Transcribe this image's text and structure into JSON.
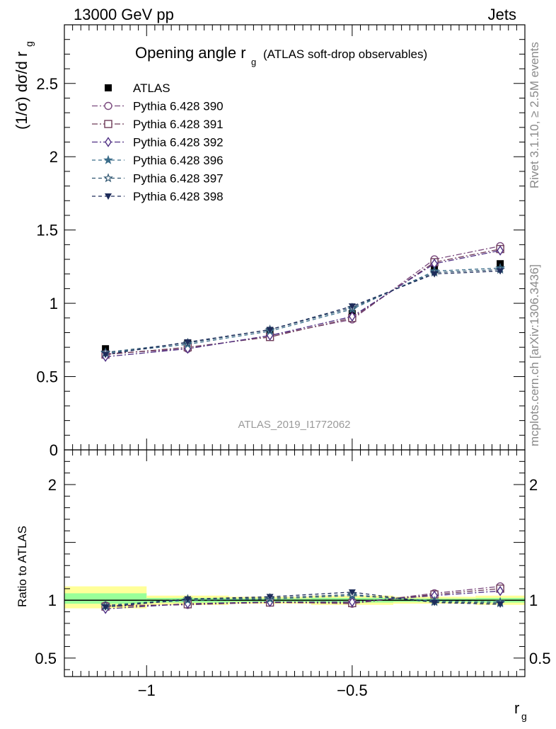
{
  "header": {
    "left": "13000 GeV pp",
    "right": "Jets"
  },
  "side_labels": {
    "rivet": "Rivet 3.1.10, ≥ 2.5M events",
    "mcplots": "mcplots.cern.ch [arXiv:1306.3436]"
  },
  "watermark": "ATLAS_2019_I1772062",
  "chart_data": [
    {
      "type": "line",
      "title": "Opening angle r",
      "title_sub": "g",
      "title_note": "(ATLAS soft-drop observables)",
      "ylabel": "(1/σ) dσ/d r",
      "ylabel_sub": "g",
      "xlim": [
        -1.2,
        -0.08
      ],
      "ylim": [
        0,
        2.9
      ],
      "x_log_scale": false,
      "yticks": [
        {
          "v": 0,
          "label": "0"
        },
        {
          "v": 0.5,
          "label": "0.5"
        },
        {
          "v": 1,
          "label": "1"
        },
        {
          "v": 1.5,
          "label": "1.5"
        },
        {
          "v": 2,
          "label": "2"
        },
        {
          "v": 2.5,
          "label": "2.5"
        }
      ],
      "x": [
        -1.1,
        -0.9,
        -0.7,
        -0.5,
        -0.3,
        -0.14
      ],
      "series": [
        {
          "name": "ATLAS",
          "color": "#000000",
          "marker": "square-filled",
          "dash": "none",
          "values": [
            0.69,
            0.73,
            0.81,
            0.93,
            1.23,
            1.27
          ],
          "errors": [
            0.012,
            0.01,
            0.01,
            0.012,
            0.015,
            0.02
          ]
        },
        {
          "name": "Pythia 6.428 390",
          "color": "#7b4a7e",
          "marker": "circle-open",
          "dash": "8,3,2,3",
          "values": [
            0.655,
            0.69,
            0.78,
            0.89,
            1.3,
            1.39
          ]
        },
        {
          "name": "Pythia 6.428 391",
          "color": "#6e3b58",
          "marker": "square-open",
          "dash": "8,3,2,3",
          "values": [
            0.65,
            0.7,
            0.77,
            0.9,
            1.28,
            1.37
          ]
        },
        {
          "name": "Pythia 6.428 392",
          "color": "#4f2f83",
          "marker": "diamond-open",
          "dash": "8,3,2,3",
          "values": [
            0.635,
            0.69,
            0.78,
            0.91,
            1.27,
            1.36
          ]
        },
        {
          "name": "Pythia 6.428 396",
          "color": "#3b6d8a",
          "marker": "star-filled",
          "dash": "5,4",
          "values": [
            0.66,
            0.72,
            0.81,
            0.96,
            1.22,
            1.24
          ]
        },
        {
          "name": "Pythia 6.428 397",
          "color": "#2f5570",
          "marker": "star-open",
          "dash": "5,4",
          "values": [
            0.665,
            0.73,
            0.82,
            0.97,
            1.21,
            1.23
          ]
        },
        {
          "name": "Pythia 6.428 398",
          "color": "#1e2c5a",
          "marker": "triangle-down-filled",
          "dash": "5,4",
          "values": [
            0.65,
            0.735,
            0.82,
            0.98,
            1.2,
            1.22
          ]
        }
      ]
    },
    {
      "type": "line",
      "ylabel": "Ratio to ATLAS",
      "xlabel": "r",
      "xlabel_sub": "g",
      "ylim": [
        0.34,
        2.3
      ],
      "xlim": [
        -1.2,
        -0.08
      ],
      "yticks": [
        {
          "v": 0.5,
          "label": "0.5"
        },
        {
          "v": 1,
          "label": "1"
        },
        {
          "v": 2,
          "label": "2"
        }
      ],
      "xticks": [
        {
          "v": -1,
          "label": "−1"
        },
        {
          "v": -0.5,
          "label": "−0.5"
        }
      ],
      "reference_band": {
        "edges": [
          -1.2,
          -1.0,
          -0.8,
          -0.6,
          -0.4,
          -0.2,
          -0.08
        ],
        "outer": [
          [
            0.93,
            1.12
          ],
          [
            0.96,
            1.04
          ],
          [
            0.97,
            1.03
          ],
          [
            0.96,
            1.04
          ],
          [
            0.97,
            1.03
          ],
          [
            0.96,
            1.04
          ]
        ],
        "inner": [
          [
            0.97,
            1.06
          ],
          [
            0.98,
            1.02
          ],
          [
            0.985,
            1.015
          ],
          [
            0.98,
            1.02
          ],
          [
            0.985,
            1.015
          ],
          [
            0.98,
            1.02
          ]
        ],
        "outer_color": "#ffff99",
        "inner_color": "#99ff99"
      },
      "x": [
        -1.1,
        -0.9,
        -0.7,
        -0.5,
        -0.3,
        -0.14
      ],
      "series": [
        {
          "name": "Pythia 6.428 390",
          "color": "#7b4a7e",
          "marker": "circle-open",
          "dash": "8,3,2,3",
          "values": [
            0.955,
            0.96,
            0.985,
            0.97,
            1.06,
            1.12
          ]
        },
        {
          "name": "Pythia 6.428 391",
          "color": "#6e3b58",
          "marker": "square-open",
          "dash": "8,3,2,3",
          "values": [
            0.945,
            0.965,
            0.98,
            0.975,
            1.05,
            1.1
          ]
        },
        {
          "name": "Pythia 6.428 392",
          "color": "#4f2f83",
          "marker": "diamond-open",
          "dash": "8,3,2,3",
          "values": [
            0.925,
            0.97,
            0.985,
            0.985,
            1.04,
            1.08
          ]
        },
        {
          "name": "Pythia 6.428 396",
          "color": "#3b6d8a",
          "marker": "star-filled",
          "dash": "5,4",
          "values": [
            0.95,
            1.0,
            1.01,
            1.04,
            0.995,
            0.985
          ]
        },
        {
          "name": "Pythia 6.428 397",
          "color": "#2f5570",
          "marker": "star-open",
          "dash": "5,4",
          "values": [
            0.955,
            1.01,
            1.02,
            1.05,
            0.985,
            0.975
          ]
        },
        {
          "name": "Pythia 6.428 398",
          "color": "#1e2c5a",
          "marker": "triangle-down-filled",
          "dash": "5,4",
          "values": [
            0.94,
            1.01,
            1.03,
            1.07,
            0.98,
            0.965
          ]
        }
      ]
    }
  ]
}
